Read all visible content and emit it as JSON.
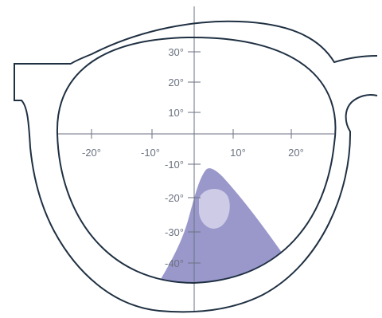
{
  "diagram": {
    "axis_labels": {
      "x_neg20": "-20°",
      "x_neg10": "-10°",
      "x_pos10": "10°",
      "x_pos20": "20°",
      "y_pos30": "30°",
      "y_pos20": "20°",
      "y_pos10": "10°",
      "y_neg10": "-10°",
      "y_neg20": "-20°",
      "y_neg30": "-30°",
      "y_neg40": "-40°"
    },
    "colors": {
      "frame": "#1f3042",
      "axes": "#6b7280",
      "tick_label": "#6b7280",
      "zone_fill": "#9a98cb",
      "zone_highlight": "#cdcbe6"
    }
  }
}
